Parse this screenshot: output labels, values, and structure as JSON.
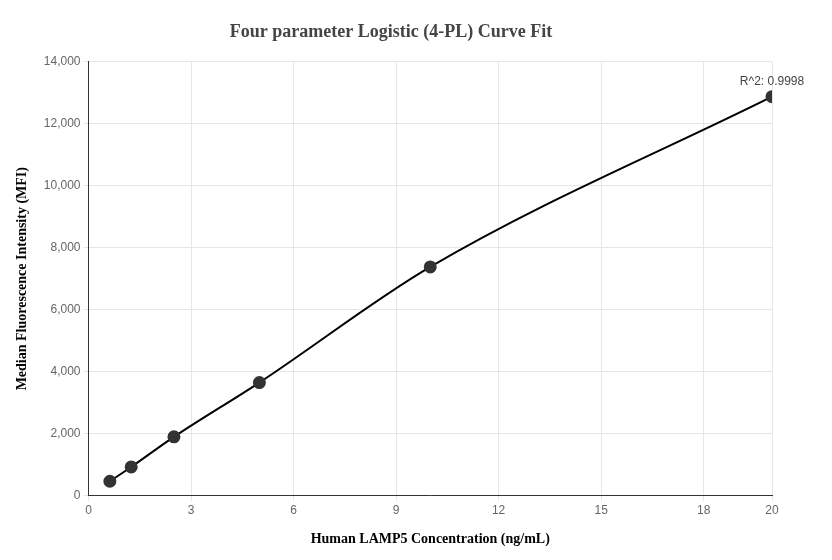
{
  "chart_data": {
    "type": "scatter",
    "title": "Four parameter Logistic (4-PL) Curve Fit",
    "x_label": "Human LAMP5 Concentration (ng/mL)",
    "y_label": "Median Fluorescence Intensity (MFI)",
    "x": [
      0.625,
      1.25,
      2.5,
      5,
      10,
      20
    ],
    "values": [
      470,
      930,
      1900,
      3650,
      7380,
      12870
    ],
    "color": "#333333",
    "marker": "circle",
    "line_style": "solid",
    "annotation": "R^2: 0.9998",
    "xlim": [
      0,
      20
    ],
    "xticks": [
      0,
      3,
      6,
      9,
      12,
      15,
      18,
      20
    ],
    "ylim": [
      0,
      14000
    ],
    "yticks": [
      0,
      {
        "value": 2000,
        "label": "2,000"
      },
      {
        "value": 4000,
        "label": "4,000"
      },
      {
        "value": 6000,
        "label": "6,000"
      },
      {
        "value": 8000,
        "label": "8,000"
      },
      {
        "value": 10000,
        "label": "10,000"
      },
      {
        "value": 12000,
        "label": "12,000"
      },
      {
        "value": 14000,
        "label": "14,000"
      }
    ],
    "grid": true
  }
}
